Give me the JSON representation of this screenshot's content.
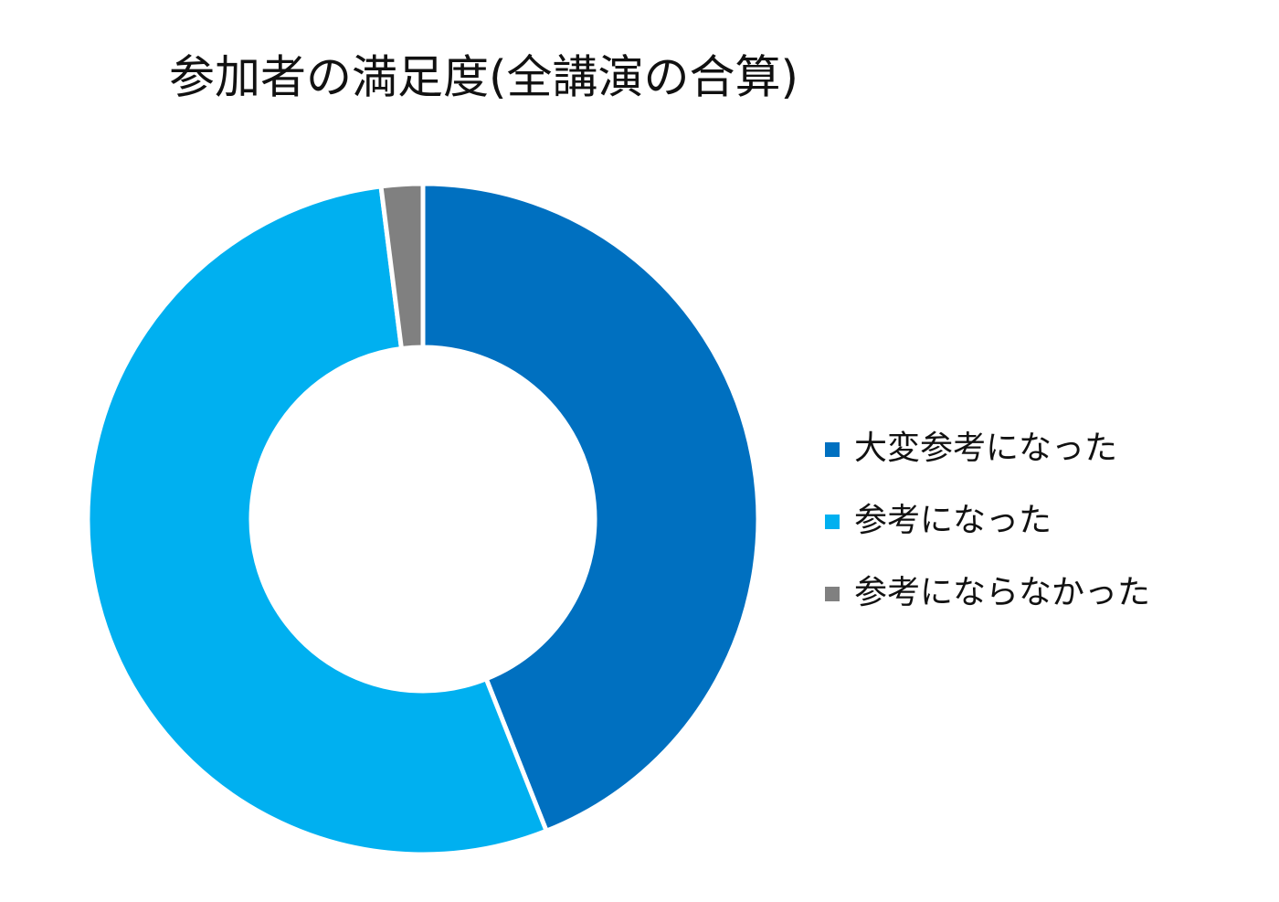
{
  "chart_data": {
    "type": "donut",
    "title": "参加者の満足度(全講演の合算)",
    "categories": [
      "大変参考になった",
      "参考になった",
      "参考にならなかった"
    ],
    "values": [
      44,
      54,
      2
    ],
    "colors": [
      "#0070c0",
      "#00b0f0",
      "#808080"
    ],
    "legend": "right"
  }
}
